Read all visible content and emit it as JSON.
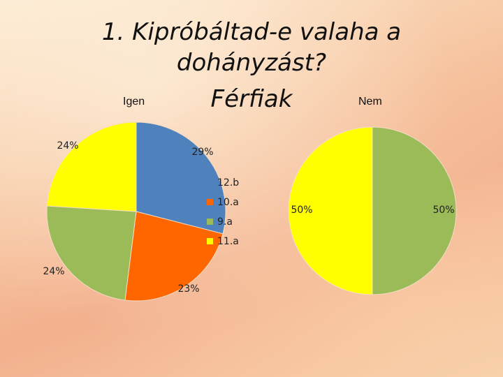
{
  "title": "1. Kipróbáltad-e valaha a dohányzást?",
  "subtitle": "Férfiak",
  "chart_data": [
    {
      "type": "pie",
      "title": "Igen",
      "slices": [
        {
          "category": "12.b",
          "label": "29%",
          "value": 29,
          "color": "#4f81bd"
        },
        {
          "category": "10.a",
          "label": "23%",
          "value": 23,
          "color": "#ff6600"
        },
        {
          "category": "9.a",
          "label": "24%",
          "value": 24,
          "color": "#9bbb59"
        },
        {
          "category": "11.a",
          "label": "24%",
          "value": 24,
          "color": "#ffff00"
        }
      ],
      "legend": [
        "12.b",
        "10.a",
        "9.a",
        "11.a"
      ]
    },
    {
      "type": "pie",
      "title": "Nem",
      "slices": [
        {
          "category": "12.b",
          "label": "",
          "value": 0,
          "color": "#4f81bd"
        },
        {
          "category": "10.a",
          "label": "",
          "value": 0,
          "color": "#ff6600"
        },
        {
          "category": "9.a",
          "label": "50%",
          "value": 50,
          "color": "#9bbb59"
        },
        {
          "category": "11.a",
          "label": "50%",
          "value": 50,
          "color": "#ffff00"
        }
      ]
    }
  ]
}
